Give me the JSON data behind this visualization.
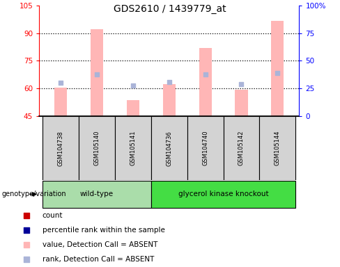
{
  "title": "GDS2610 / 1439779_at",
  "samples": [
    "GSM104738",
    "GSM105140",
    "GSM105141",
    "GSM104736",
    "GSM104740",
    "GSM105142",
    "GSM105144"
  ],
  "bar_values": [
    60.5,
    92.0,
    53.5,
    62.5,
    82.0,
    59.5,
    96.5
  ],
  "rank_values": [
    63.0,
    67.5,
    61.5,
    63.5,
    67.5,
    62.5,
    68.5
  ],
  "ylim_left": [
    45,
    105
  ],
  "ylim_right": [
    0,
    100
  ],
  "yticks_left": [
    45,
    60,
    75,
    90,
    105
  ],
  "ytick_labels_left": [
    "45",
    "60",
    "75",
    "90",
    "105"
  ],
  "yticks_right": [
    0,
    25,
    50,
    75,
    100
  ],
  "ytick_labels_right": [
    "0",
    "25",
    "50",
    "75",
    "100%"
  ],
  "groups": [
    {
      "label": "wild-type",
      "start": 0,
      "end": 3,
      "color": "#aaddaa"
    },
    {
      "label": "glycerol kinase knockout",
      "start": 3,
      "end": 7,
      "color": "#44dd44"
    }
  ],
  "genotype_label": "genotype/variation",
  "bar_color_absent": "#ffb6b6",
  "rank_color_absent": "#aab4d8",
  "bar_bottom": 45,
  "sample_box_color": "#d3d3d3",
  "bar_width": 0.35,
  "legend_items": [
    {
      "color": "#cc0000",
      "marker": "s",
      "label": "count"
    },
    {
      "color": "#000099",
      "marker": "s",
      "label": "percentile rank within the sample"
    },
    {
      "color": "#ffb6b6",
      "marker": "s",
      "label": "value, Detection Call = ABSENT"
    },
    {
      "color": "#aab4d8",
      "marker": "s",
      "label": "rank, Detection Call = ABSENT"
    }
  ]
}
